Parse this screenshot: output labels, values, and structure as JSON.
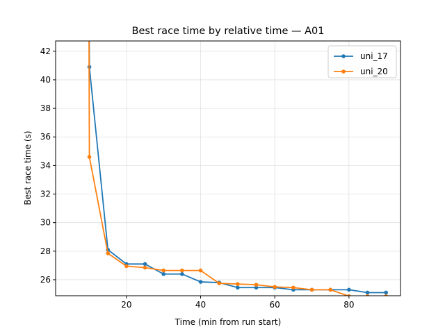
{
  "chart_data": {
    "type": "line",
    "title": "Best race time by relative time — A01",
    "xlabel": "Time (min from run start)",
    "ylabel": "Best race time (s)",
    "xlim": [
      0.9,
      93.9
    ],
    "ylim": [
      24.88,
      42.72
    ],
    "xticks": [
      20,
      40,
      60,
      80
    ],
    "yticks": [
      26,
      28,
      30,
      32,
      34,
      36,
      38,
      40,
      42
    ],
    "grid": true,
    "legend_position": "top-right",
    "series": [
      {
        "name": "uni_17",
        "color": "#1f77b4",
        "x": [
          9.7,
          10,
          15,
          20,
          25,
          30,
          35,
          40,
          45,
          50,
          55,
          60,
          65,
          70,
          75,
          80,
          85,
          90
        ],
        "y": [
          60,
          40.9,
          28.1,
          27.1,
          27.1,
          26.4,
          26.4,
          25.85,
          25.8,
          25.45,
          25.45,
          25.45,
          25.3,
          25.3,
          25.3,
          25.3,
          25.1,
          25.1
        ]
      },
      {
        "name": "uni_20",
        "color": "#ff7f0e",
        "x": [
          9.7,
          10,
          15,
          20,
          25,
          30,
          35,
          40,
          45,
          50,
          55,
          60,
          65,
          70,
          75,
          80,
          85,
          90
        ],
        "y": [
          60,
          34.6,
          27.85,
          26.95,
          26.85,
          26.65,
          26.65,
          26.65,
          25.75,
          25.7,
          25.65,
          25.5,
          25.45,
          25.3,
          25.3,
          24.85,
          24.85,
          24.85
        ]
      }
    ]
  }
}
